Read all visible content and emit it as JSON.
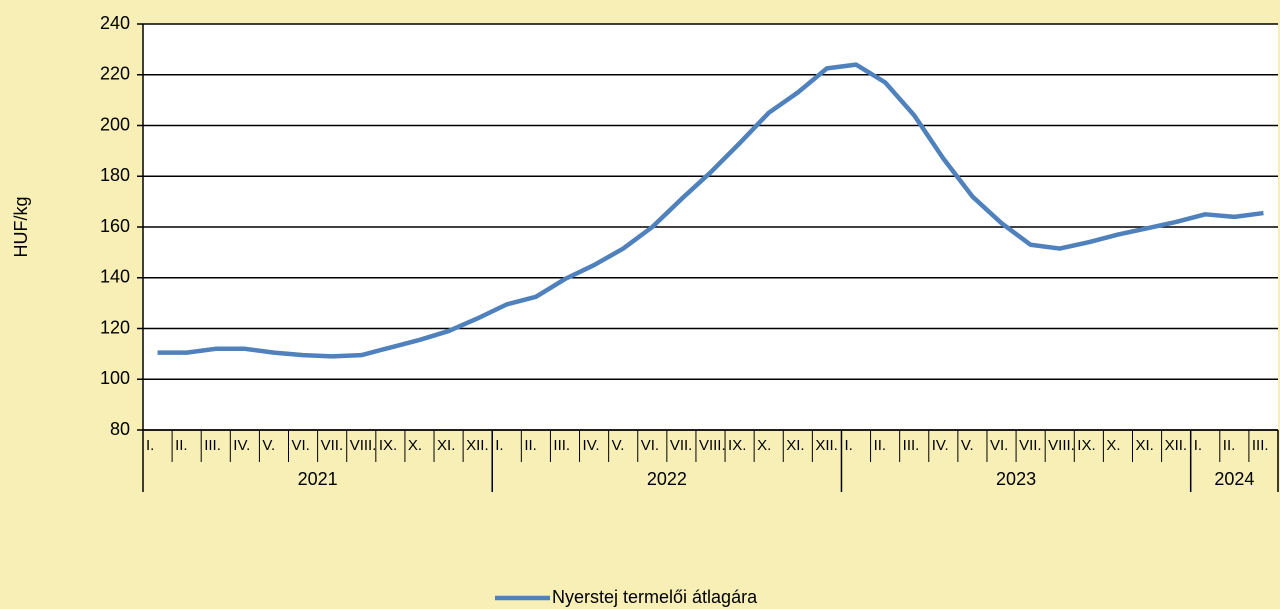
{
  "chart_data": {
    "type": "line",
    "y_label": "HUF/kg",
    "groups": [
      {
        "name": "2021",
        "categories": [
          "I.",
          "II.",
          "III.",
          "IV.",
          "V.",
          "VI.",
          "VII.",
          "VIII.",
          "IX.",
          "X.",
          "XI.",
          "XII."
        ]
      },
      {
        "name": "2022",
        "categories": [
          "I.",
          "II.",
          "III.",
          "IV.",
          "V.",
          "VI.",
          "VII.",
          "VIII.",
          "IX.",
          "X.",
          "XI.",
          "XII."
        ]
      },
      {
        "name": "2023",
        "categories": [
          "I.",
          "II.",
          "III.",
          "IV.",
          "V.",
          "VI.",
          "VII.",
          "VIII.",
          "IX.",
          "X.",
          "XI.",
          "XII."
        ]
      },
      {
        "name": "2024",
        "categories": [
          "I.",
          "II.",
          "III."
        ]
      }
    ],
    "series": [
      {
        "name": "Nyerstej termelői átlagára",
        "color": "#4f81bd",
        "values": [
          110.5,
          110.5,
          112,
          112,
          110.5,
          109.5,
          109,
          109.5,
          112.5,
          115.5,
          119,
          124,
          129.5,
          132.5,
          139.5,
          145,
          151.5,
          160,
          171,
          181.5,
          193,
          205,
          213,
          222.5,
          224,
          217,
          204,
          187,
          172,
          161.5,
          153,
          151.5,
          154,
          157,
          159.5,
          162,
          165,
          164,
          165.5
        ]
      }
    ],
    "ylim": [
      80,
      240
    ],
    "yticks": [
      80,
      100,
      120,
      140,
      160,
      180,
      200,
      220,
      240
    ],
    "grid": true,
    "legend": "bottom"
  }
}
